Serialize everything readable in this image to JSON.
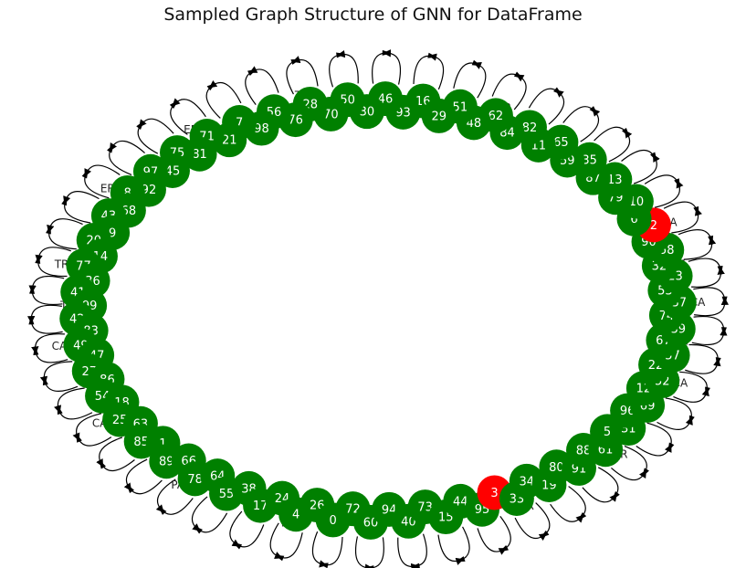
{
  "title": "Sampled Graph Structure of GNN for DataFrame",
  "colors": {
    "node_default": "#008000",
    "node_highlight": "#ff0000",
    "edge": "#000000",
    "node_label": "#ffffff",
    "edge_label": "#222222"
  },
  "graph": {
    "layout": "ring",
    "nodes": [
      {
        "id": "16"
      },
      {
        "id": "93"
      },
      {
        "id": "46"
      },
      {
        "id": "30"
      },
      {
        "id": "50"
      },
      {
        "id": "70"
      },
      {
        "id": "28"
      },
      {
        "id": "76"
      },
      {
        "id": "56"
      },
      {
        "id": "98"
      },
      {
        "id": "7"
      },
      {
        "id": "21"
      },
      {
        "id": "71"
      },
      {
        "id": "81"
      },
      {
        "id": "75"
      },
      {
        "id": "45"
      },
      {
        "id": "97"
      },
      {
        "id": "92"
      },
      {
        "id": "8"
      },
      {
        "id": "68"
      },
      {
        "id": "43"
      },
      {
        "id": "9"
      },
      {
        "id": "20"
      },
      {
        "id": "14"
      },
      {
        "id": "77"
      },
      {
        "id": "36"
      },
      {
        "id": "41"
      },
      {
        "id": "99"
      },
      {
        "id": "42"
      },
      {
        "id": "83"
      },
      {
        "id": "49"
      },
      {
        "id": "47"
      },
      {
        "id": "27"
      },
      {
        "id": "86"
      },
      {
        "id": "54"
      },
      {
        "id": "18"
      },
      {
        "id": "25"
      },
      {
        "id": "63"
      },
      {
        "id": "85"
      },
      {
        "id": "1"
      },
      {
        "id": "89"
      },
      {
        "id": "66"
      },
      {
        "id": "78"
      },
      {
        "id": "64"
      },
      {
        "id": "55"
      },
      {
        "id": "38"
      },
      {
        "id": "17"
      },
      {
        "id": "24"
      },
      {
        "id": "4"
      },
      {
        "id": "26"
      },
      {
        "id": "0"
      },
      {
        "id": "72"
      },
      {
        "id": "60"
      },
      {
        "id": "94"
      },
      {
        "id": "40"
      },
      {
        "id": "73"
      },
      {
        "id": "15"
      },
      {
        "id": "44"
      },
      {
        "id": "95"
      },
      {
        "id": "3",
        "highlight": true
      },
      {
        "id": "33"
      },
      {
        "id": "34"
      },
      {
        "id": "19"
      },
      {
        "id": "80"
      },
      {
        "id": "91"
      },
      {
        "id": "88"
      },
      {
        "id": "61"
      },
      {
        "id": "5"
      },
      {
        "id": "31"
      },
      {
        "id": "96"
      },
      {
        "id": "69"
      },
      {
        "id": "12"
      },
      {
        "id": "52"
      },
      {
        "id": "22"
      },
      {
        "id": "57"
      },
      {
        "id": "67"
      },
      {
        "id": "39"
      },
      {
        "id": "74"
      },
      {
        "id": "37"
      },
      {
        "id": "53"
      },
      {
        "id": "23"
      },
      {
        "id": "32"
      },
      {
        "id": "58"
      },
      {
        "id": "90"
      },
      {
        "id": "2",
        "highlight": true
      },
      {
        "id": "6"
      },
      {
        "id": "10"
      },
      {
        "id": "79"
      },
      {
        "id": "13"
      },
      {
        "id": "87"
      },
      {
        "id": "35"
      },
      {
        "id": "59"
      },
      {
        "id": "65"
      },
      {
        "id": "11"
      },
      {
        "id": "82"
      },
      {
        "id": "84"
      },
      {
        "id": "62"
      },
      {
        "id": "48"
      },
      {
        "id": "51"
      },
      {
        "id": "29"
      }
    ],
    "edge_labels_visible": [
      "PA",
      "TR",
      "CA",
      "UT",
      "ER",
      "FR",
      "T",
      "R",
      "CA",
      "PA",
      "TR",
      "UT",
      "ER",
      "T"
    ]
  }
}
